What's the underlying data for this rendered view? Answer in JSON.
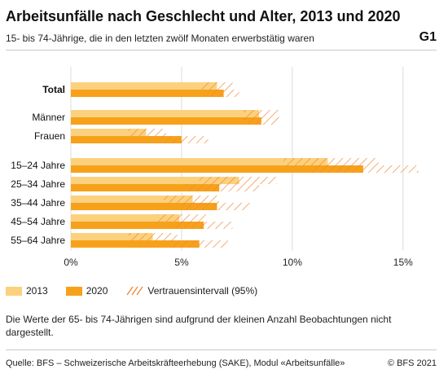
{
  "header": {
    "title": "Arbeitsunfälle nach Geschlecht und Alter, 2013 und 2020",
    "subtitle": "15- bis 74-Jährige, die in den letzten zwölf Monaten erwerbstätig waren",
    "code": "G1"
  },
  "chart_data": {
    "type": "bar",
    "orientation": "horizontal",
    "categories": [
      "Total",
      "Männer",
      "Frauen",
      "15–24 Jahre",
      "25–34 Jahre",
      "35–44 Jahre",
      "45–54 Jahre",
      "55–64 Jahre"
    ],
    "series": [
      {
        "name": "2013",
        "values": [
          6.6,
          8.5,
          3.4,
          11.6,
          7.6,
          5.5,
          4.9,
          3.7
        ],
        "ci_low": [
          5.9,
          7.8,
          2.6,
          9.6,
          5.8,
          4.2,
          3.9,
          2.6
        ],
        "ci_high": [
          7.3,
          9.4,
          4.3,
          13.9,
          9.3,
          6.7,
          6.1,
          4.8
        ],
        "color": "#fcd17d"
      },
      {
        "name": "2020",
        "values": [
          6.9,
          8.6,
          5.0,
          13.2,
          6.7,
          6.6,
          6.0,
          5.8
        ],
        "ci_low": [
          6.2,
          7.8,
          4.0,
          10.9,
          5.2,
          5.0,
          4.7,
          4.5
        ],
        "ci_high": [
          7.6,
          9.4,
          6.2,
          15.7,
          8.5,
          8.1,
          7.3,
          7.1
        ],
        "color": "#f7a11a"
      }
    ],
    "xlim": [
      0,
      16
    ],
    "xticks": [
      "0%",
      "5%",
      "10%",
      "15%"
    ],
    "xtick_values": [
      0,
      5,
      10,
      15
    ],
    "grid": true,
    "bold_categories": [
      "Total"
    ],
    "legend": {
      "placement": "bottom-left",
      "items": [
        "2013",
        "2020",
        "Vertrauensintervall (95%)"
      ]
    }
  },
  "note": "Die Werte der 65- bis 74-Jährigen sind aufgrund der kleinen Anzahl Beobachtungen nicht dargestellt.",
  "footer": {
    "source": "Quelle: BFS – Schweizerische Arbeitskräfteerhebung (SAKE), Modul «Arbeitsunfälle»",
    "copyright": "© BFS 2021"
  }
}
